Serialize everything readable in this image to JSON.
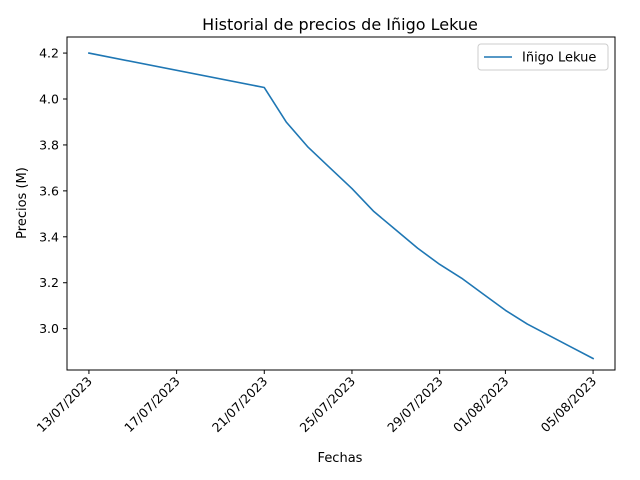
{
  "chart_data": {
    "type": "line",
    "title": "Historial de precios de Iñigo Lekue",
    "xlabel": "Fechas",
    "ylabel": "Precios (M)",
    "x_tick_labels": [
      "13/07/2023",
      "17/07/2023",
      "21/07/2023",
      "25/07/2023",
      "29/07/2023",
      "01/08/2023",
      "05/08/2023"
    ],
    "x_tick_dates": [
      "2023-07-13",
      "2023-07-17",
      "2023-07-21",
      "2023-07-25",
      "2023-07-29",
      "2023-08-01",
      "2023-08-05"
    ],
    "y_ticks": [
      "3.0",
      "3.2",
      "3.4",
      "3.6",
      "3.8",
      "4.0",
      "4.2"
    ],
    "ylim": [
      2.82,
      4.27
    ],
    "xlim": [
      "2023-07-12",
      "2023-08-06"
    ],
    "legend_position": "upper right",
    "grid": false,
    "series": [
      {
        "name": "Iñigo Lekue",
        "color": "#1f77b4",
        "x": [
          "2023-07-13",
          "2023-07-21",
          "2023-07-22",
          "2023-07-23",
          "2023-07-24",
          "2023-07-25",
          "2023-07-26",
          "2023-07-27",
          "2023-07-28",
          "2023-07-29",
          "2023-07-30",
          "2023-07-31",
          "2023-08-01",
          "2023-08-02",
          "2023-08-03",
          "2023-08-04",
          "2023-08-05"
        ],
        "values": [
          4.2,
          4.05,
          3.9,
          3.79,
          3.7,
          3.61,
          3.51,
          3.43,
          3.35,
          3.28,
          3.22,
          3.15,
          3.08,
          3.02,
          2.97,
          2.92,
          2.87
        ]
      }
    ]
  }
}
